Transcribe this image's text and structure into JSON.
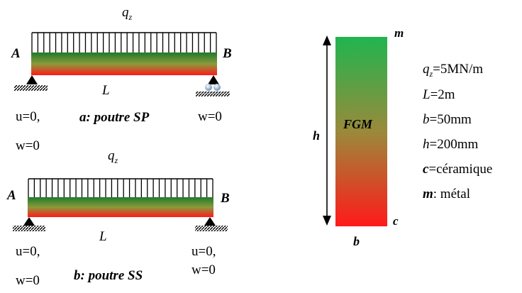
{
  "beam_a": {
    "load_label_q": "q",
    "load_label_sub": "z",
    "left_node": "A",
    "right_node": "B",
    "length_label": "L",
    "left_bc_line1": "u=0,",
    "left_bc_line2": "w=0",
    "right_bc": "w=0",
    "caption": "a: poutre SP"
  },
  "beam_b": {
    "load_label_q": "q",
    "load_label_sub": "z",
    "left_node": "A",
    "right_node": "B",
    "length_label": "L",
    "left_bc_line1": "u=0,",
    "left_bc_line2": "w=0",
    "right_bc_line1": "u=0,",
    "right_bc_line2": "w=0",
    "caption": "b: poutre SS"
  },
  "section": {
    "top_label": "m",
    "bottom_label": "c",
    "width_label": "b",
    "height_label": "h",
    "center_label": "FGM",
    "color_top": "#1fb54f",
    "color_bottom": "#ff1a1a"
  },
  "params": {
    "q_sym": "q",
    "q_sub": "z",
    "q_val": "=5MN/m",
    "L_sym": "L",
    "L_val": "=2m",
    "b_sym": "b",
    "b_val": "=50mm",
    "h_sym": "h",
    "h_val": "=200mm",
    "c_sym": "c",
    "c_val": "=céramique",
    "m_sym": "m",
    "m_val": ": métal"
  }
}
